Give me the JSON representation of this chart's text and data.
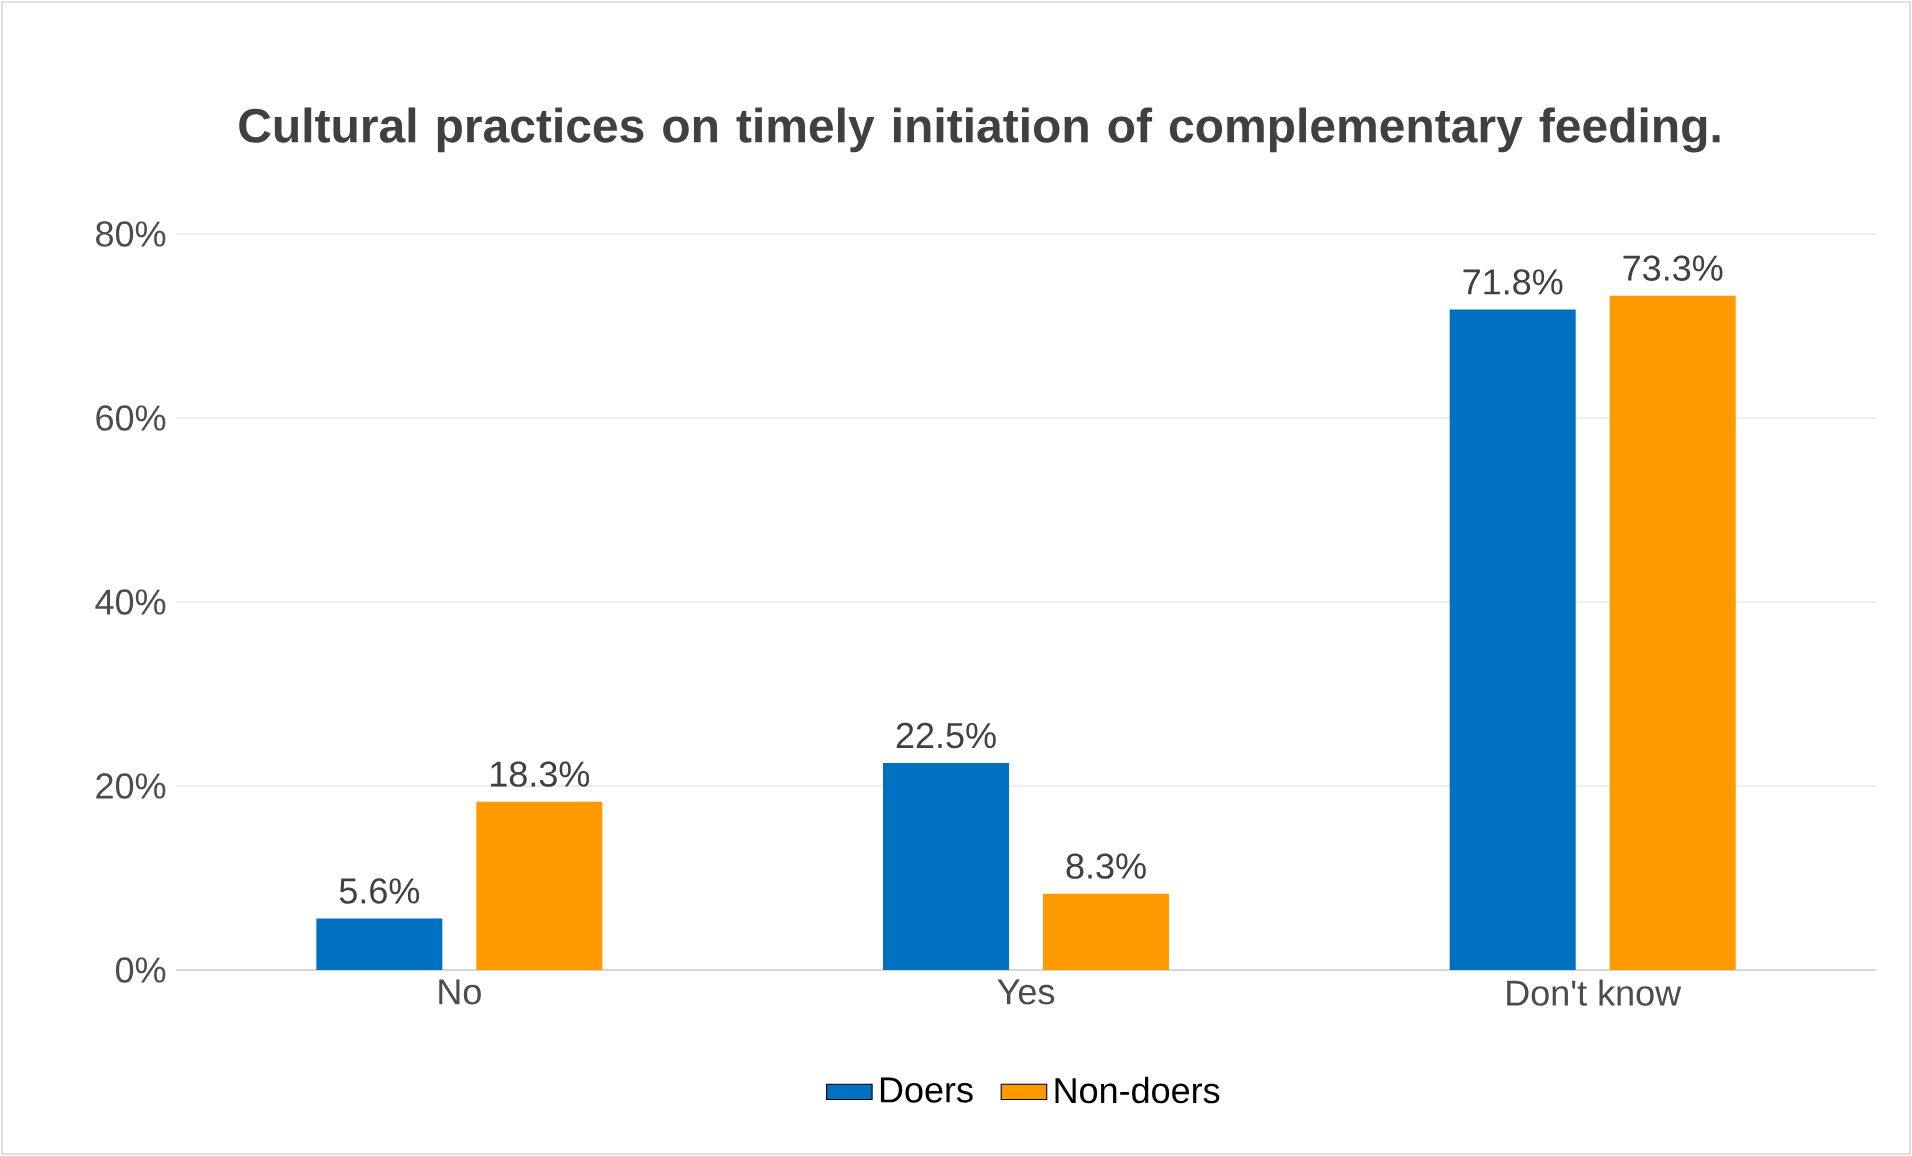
{
  "chart_data": {
    "type": "bar",
    "title": "Cultural practices on timely initiation of complementary feeding.",
    "categories": [
      "No",
      "Yes",
      "Don't know"
    ],
    "series": [
      {
        "name": "Doers",
        "color": "#0070c0",
        "values": [
          5.6,
          22.5,
          71.8
        ],
        "value_labels": [
          "5.6%",
          "22.5%",
          "71.8%"
        ]
      },
      {
        "name": "Non-doers",
        "color": "#ff9900",
        "values": [
          18.3,
          8.3,
          73.3
        ],
        "value_labels": [
          "18.3%",
          "8.3%",
          "73.3%"
        ]
      }
    ],
    "ylim": [
      0,
      80
    ],
    "yticks": [
      {
        "value": 0,
        "label": "0%"
      },
      {
        "value": 20,
        "label": "20%"
      },
      {
        "value": 40,
        "label": "40%"
      },
      {
        "value": 60,
        "label": "60%"
      },
      {
        "value": 80,
        "label": "80%"
      }
    ],
    "grid": "y",
    "legend": "bottom"
  }
}
